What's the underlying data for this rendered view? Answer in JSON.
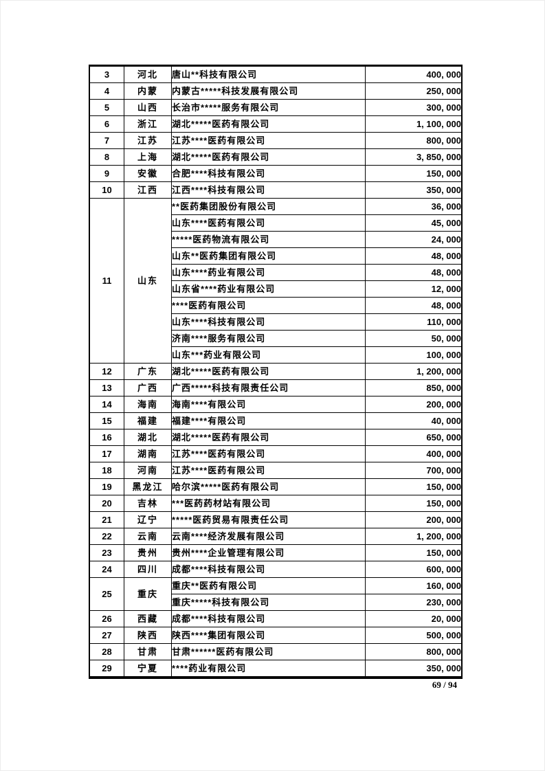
{
  "page": {
    "page_indicator": "69 / 94"
  },
  "table": {
    "rows": [
      {
        "no": "3",
        "province": "河北",
        "entries": [
          {
            "company": "唐山**科技有限公司",
            "amount": "400, 000"
          }
        ]
      },
      {
        "no": "4",
        "province": "内蒙",
        "entries": [
          {
            "company": "内蒙古*****科技发展有限公司",
            "amount": "250, 000"
          }
        ]
      },
      {
        "no": "5",
        "province": "山西",
        "entries": [
          {
            "company": "长治市*****服务有限公司",
            "amount": "300, 000"
          }
        ]
      },
      {
        "no": "6",
        "province": "浙江",
        "entries": [
          {
            "company": "湖北*****医药有限公司",
            "amount": "1, 100, 000"
          }
        ]
      },
      {
        "no": "7",
        "province": "江苏",
        "entries": [
          {
            "company": "江苏****医药有限公司",
            "amount": "800, 000"
          }
        ]
      },
      {
        "no": "8",
        "province": "上海",
        "entries": [
          {
            "company": "湖北*****医药有限公司",
            "amount": "3, 850, 000"
          }
        ]
      },
      {
        "no": "9",
        "province": "安徽",
        "entries": [
          {
            "company": "合肥****科技有限公司",
            "amount": "150, 000"
          }
        ]
      },
      {
        "no": "10",
        "province": "江西",
        "entries": [
          {
            "company": "江西****科技有限公司",
            "amount": "350, 000"
          }
        ]
      },
      {
        "no": "11",
        "province": "山东",
        "entries": [
          {
            "company": "**医药集团股份有限公司",
            "amount": "36, 000"
          },
          {
            "company": "山东****医药有限公司",
            "amount": "45, 000"
          },
          {
            "company": "*****医药物流有限公司",
            "amount": "24, 000"
          },
          {
            "company": "山东**医药集团有限公司",
            "amount": "48, 000"
          },
          {
            "company": "山东****药业有限公司",
            "amount": "48, 000"
          },
          {
            "company": "山东省****药业有限公司",
            "amount": "12, 000"
          },
          {
            "company": "****医药有限公司",
            "amount": "48, 000"
          },
          {
            "company": "山东****科技有限公司",
            "amount": "110, 000"
          },
          {
            "company": "济南****服务有限公司",
            "amount": "50, 000"
          },
          {
            "company": "山东***药业有限公司",
            "amount": "100, 000"
          }
        ]
      },
      {
        "no": "12",
        "province": "广东",
        "entries": [
          {
            "company": "湖北*****医药有限公司",
            "amount": "1, 200, 000"
          }
        ]
      },
      {
        "no": "13",
        "province": "广西",
        "entries": [
          {
            "company": "广西*****科技有限责任公司",
            "amount": "850, 000"
          }
        ]
      },
      {
        "no": "14",
        "province": "海南",
        "entries": [
          {
            "company": "海南****有限公司",
            "amount": "200, 000"
          }
        ]
      },
      {
        "no": "15",
        "province": "福建",
        "entries": [
          {
            "company": "福建****有限公司",
            "amount": "40, 000"
          }
        ]
      },
      {
        "no": "16",
        "province": "湖北",
        "entries": [
          {
            "company": "湖北*****医药有限公司",
            "amount": "650, 000"
          }
        ]
      },
      {
        "no": "17",
        "province": "湖南",
        "entries": [
          {
            "company": "江苏****医药有限公司",
            "amount": "400, 000"
          }
        ]
      },
      {
        "no": "18",
        "province": "河南",
        "entries": [
          {
            "company": "江苏****医药有限公司",
            "amount": "700, 000"
          }
        ]
      },
      {
        "no": "19",
        "province": "黑龙江",
        "entries": [
          {
            "company": "哈尔滨*****医药有限公司",
            "amount": "150, 000"
          }
        ]
      },
      {
        "no": "20",
        "province": "吉林",
        "entries": [
          {
            "company": "***医药药材站有限公司",
            "amount": "150, 000"
          }
        ]
      },
      {
        "no": "21",
        "province": "辽宁",
        "entries": [
          {
            "company": "*****医药贸易有限责任公司",
            "amount": "200, 000"
          }
        ]
      },
      {
        "no": "22",
        "province": "云南",
        "entries": [
          {
            "company": "云南****经济发展有限公司",
            "amount": "1, 200, 000"
          }
        ]
      },
      {
        "no": "23",
        "province": "贵州",
        "entries": [
          {
            "company": "贵州****企业管理有限公司",
            "amount": "150, 000"
          }
        ]
      },
      {
        "no": "24",
        "province": "四川",
        "entries": [
          {
            "company": "成都****科技有限公司",
            "amount": "600, 000"
          }
        ]
      },
      {
        "no": "25",
        "province": "重庆",
        "entries": [
          {
            "company": "重庆**医药有限公司",
            "amount": "160, 000"
          },
          {
            "company": "重庆*****科技有限公司",
            "amount": "230, 000"
          }
        ]
      },
      {
        "no": "26",
        "province": "西藏",
        "entries": [
          {
            "company": "成都****科技有限公司",
            "amount": "20, 000"
          }
        ]
      },
      {
        "no": "27",
        "province": "陕西",
        "entries": [
          {
            "company": "陕西****集团有限公司",
            "amount": "500, 000"
          }
        ]
      },
      {
        "no": "28",
        "province": "甘肃",
        "entries": [
          {
            "company": "甘肃******医药有限公司",
            "amount": "800, 000"
          }
        ]
      },
      {
        "no": "29",
        "province": "宁夏",
        "entries": [
          {
            "company": "****药业有限公司",
            "amount": "350, 000"
          }
        ]
      }
    ]
  }
}
